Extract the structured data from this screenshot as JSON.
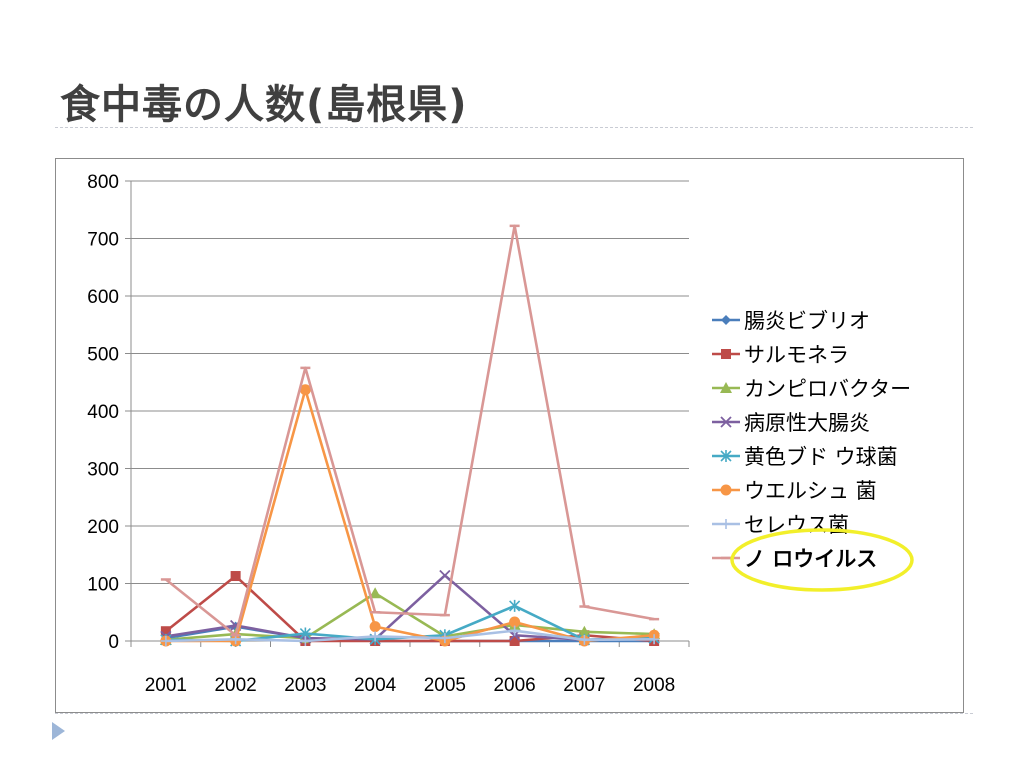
{
  "slide": {
    "title": "食中毒の人数(島根県)"
  },
  "chart_data": {
    "type": "line",
    "x": [
      "2001",
      "2002",
      "2003",
      "2004",
      "2005",
      "2006",
      "2007",
      "2008"
    ],
    "ylim": [
      0,
      800
    ],
    "yticks": [
      0,
      100,
      200,
      300,
      400,
      500,
      600,
      700,
      800
    ],
    "grid": true,
    "legend_position": "right",
    "series": [
      {
        "name": "腸炎ビブリオ",
        "color": "#4a7ebb",
        "marker": "diamond",
        "values": [
          5,
          25,
          5,
          0,
          0,
          0,
          0,
          0
        ]
      },
      {
        "name": "サルモネラ",
        "color": "#be4b48",
        "marker": "square",
        "values": [
          17,
          113,
          0,
          0,
          0,
          0,
          10,
          0
        ]
      },
      {
        "name": "カンピロバクター",
        "color": "#98b954",
        "marker": "triangle",
        "values": [
          2,
          12,
          5,
          83,
          8,
          28,
          16,
          12
        ]
      },
      {
        "name": "病原性大腸炎",
        "color": "#7d60a0",
        "marker": "x",
        "values": [
          8,
          27,
          5,
          3,
          114,
          10,
          2,
          5
        ]
      },
      {
        "name": "黄色ブドウ球菌",
        "color": "#46aac5",
        "marker": "star",
        "values": [
          2,
          0,
          13,
          3,
          10,
          61,
          2,
          5
        ]
      },
      {
        "name": "ウエルシュ菌",
        "color": "#f79646",
        "marker": "circle",
        "values": [
          0,
          0,
          437,
          25,
          0,
          33,
          0,
          10
        ]
      },
      {
        "name": "セレウス菌",
        "color": "#a9c0e4",
        "marker": "plus",
        "values": [
          0,
          3,
          0,
          8,
          5,
          18,
          2,
          3
        ]
      },
      {
        "name": "ノロウイルス",
        "color": "#d99795",
        "marker": "dash",
        "values": [
          107,
          10,
          475,
          50,
          45,
          722,
          60,
          38
        ]
      }
    ],
    "legend_labels": [
      "腸炎ビブリオ",
      "サルモネラ",
      "カンピロバクター",
      "病原性大腸炎",
      "黄色ブド ウ球菌",
      "ウエルシュ 菌",
      "セレウス菌",
      "ノ ロウイルス"
    ],
    "highlighted_series": "ノロウイルス",
    "highlight_color": "#f2ef2a"
  }
}
